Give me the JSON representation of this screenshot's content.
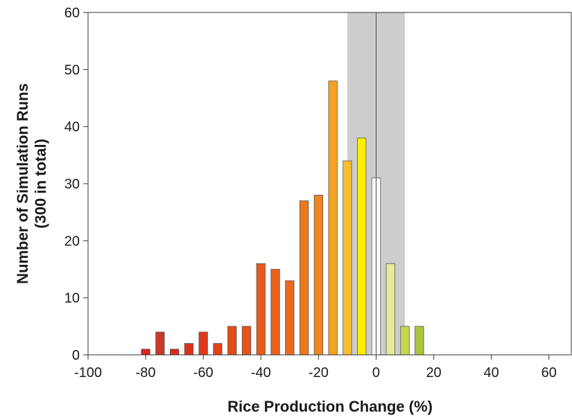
{
  "chart_data": {
    "type": "bar",
    "xlabel": "Rice Production Change (%)",
    "ylabel_lines": [
      "Number of Simulation Runs",
      "(300 in total)"
    ],
    "xlim": [
      -100,
      68
    ],
    "ylim": [
      0,
      60
    ],
    "xticks": [
      -100,
      -80,
      -60,
      -40,
      -20,
      0,
      20,
      40,
      60
    ],
    "yticks": [
      0,
      10,
      20,
      30,
      40,
      50,
      60
    ],
    "bar_width": 3,
    "shaded_band": [
      -10,
      10
    ],
    "zero_line": 0,
    "grid": false,
    "legend": "none",
    "bars": [
      {
        "x": -80,
        "value": 1,
        "color": "#d9241c"
      },
      {
        "x": -75,
        "value": 4,
        "color": "#c73a2a"
      },
      {
        "x": -70,
        "value": 1,
        "color": "#da2a1b"
      },
      {
        "x": -65,
        "value": 2,
        "color": "#dc321a"
      },
      {
        "x": -60,
        "value": 4,
        "color": "#df3a1a"
      },
      {
        "x": -55,
        "value": 2,
        "color": "#e1421a"
      },
      {
        "x": -50,
        "value": 5,
        "color": "#e44a1a"
      },
      {
        "x": -45,
        "value": 5,
        "color": "#e6521b"
      },
      {
        "x": -40,
        "value": 16,
        "color": "#e85a1b"
      },
      {
        "x": -35,
        "value": 15,
        "color": "#e9611c"
      },
      {
        "x": -30,
        "value": 13,
        "color": "#ea691d"
      },
      {
        "x": -25,
        "value": 27,
        "color": "#ec781e"
      },
      {
        "x": -20,
        "value": 28,
        "color": "#f08520"
      },
      {
        "x": -15,
        "value": 48,
        "color": "#f4a221"
      },
      {
        "x": -10,
        "value": 34,
        "color": "#f8be30"
      },
      {
        "x": -5,
        "value": 38,
        "color": "#ffee00"
      },
      {
        "x": 0,
        "value": 31,
        "color": "#ffffff"
      },
      {
        "x": 5,
        "value": 16,
        "color": "#e3eb9a"
      },
      {
        "x": 10,
        "value": 5,
        "color": "#c4d64c"
      },
      {
        "x": 15,
        "value": 5,
        "color": "#a9c63e"
      }
    ]
  }
}
